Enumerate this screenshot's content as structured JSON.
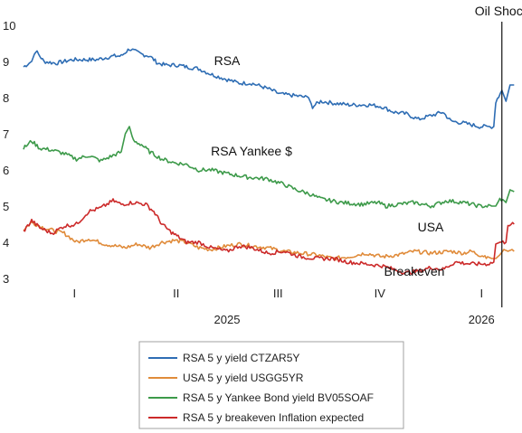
{
  "chart_data": {
    "type": "line",
    "ylim": [
      3,
      10
    ],
    "yticks": [
      3,
      4,
      5,
      6,
      7,
      8,
      9,
      10
    ],
    "quarter_labels": [
      {
        "label": "I",
        "t": 0.125
      },
      {
        "label": "II",
        "t": 0.375
      },
      {
        "label": "III",
        "t": 0.625
      },
      {
        "label": "IV",
        "t": 0.875
      },
      {
        "label": "I",
        "t": 1.125
      }
    ],
    "year_labels": [
      {
        "label": "2025",
        "t": 0.5
      },
      {
        "label": "2026",
        "t": 1.125
      }
    ],
    "xlim": [
      0.0,
      1.22
    ],
    "event": {
      "label": "Oil Shock",
      "t": 1.175
    },
    "annotations": [
      {
        "text": "RSA",
        "series": 0,
        "t": 0.5,
        "y": 8.9
      },
      {
        "text": "RSA Yankee $",
        "series": 2,
        "t": 0.56,
        "y": 6.4
      },
      {
        "text": "USA",
        "series": 1,
        "t": 1.0,
        "y": 4.3
      },
      {
        "text": "Breakeven",
        "series": 3,
        "t": 0.96,
        "y": 3.08
      }
    ],
    "series": [
      {
        "name": "RSA 5 y yield CTZAR5Y",
        "color": "#2e6db4",
        "points": [
          [
            0.0,
            8.85
          ],
          [
            0.02,
            9.0
          ],
          [
            0.03,
            9.3
          ],
          [
            0.05,
            9.0
          ],
          [
            0.08,
            8.95
          ],
          [
            0.12,
            9.05
          ],
          [
            0.18,
            9.05
          ],
          [
            0.22,
            9.15
          ],
          [
            0.24,
            9.15
          ],
          [
            0.26,
            9.35
          ],
          [
            0.29,
            9.2
          ],
          [
            0.31,
            9.15
          ],
          [
            0.33,
            8.95
          ],
          [
            0.35,
            8.9
          ],
          [
            0.38,
            8.9
          ],
          [
            0.4,
            8.85
          ],
          [
            0.43,
            8.8
          ],
          [
            0.46,
            8.65
          ],
          [
            0.5,
            8.5
          ],
          [
            0.53,
            8.4
          ],
          [
            0.56,
            8.4
          ],
          [
            0.6,
            8.25
          ],
          [
            0.63,
            8.1
          ],
          [
            0.67,
            8.05
          ],
          [
            0.7,
            8.0
          ],
          [
            0.71,
            7.75
          ],
          [
            0.73,
            7.9
          ],
          [
            0.76,
            7.85
          ],
          [
            0.8,
            7.8
          ],
          [
            0.85,
            7.8
          ],
          [
            0.88,
            7.75
          ],
          [
            0.91,
            7.6
          ],
          [
            0.94,
            7.55
          ],
          [
            0.97,
            7.4
          ],
          [
            1.0,
            7.5
          ],
          [
            1.03,
            7.6
          ],
          [
            1.05,
            7.35
          ],
          [
            1.08,
            7.3
          ],
          [
            1.12,
            7.2
          ],
          [
            1.145,
            7.2
          ],
          [
            1.15,
            7.15
          ],
          [
            1.155,
            7.2
          ],
          [
            1.16,
            7.9
          ],
          [
            1.175,
            8.2
          ],
          [
            1.185,
            7.9
          ],
          [
            1.195,
            8.35
          ],
          [
            1.205,
            8.35
          ]
        ]
      },
      {
        "name": "USA 5 y yield USGG5YR",
        "color": "#e08b3a",
        "points": [
          [
            0.0,
            4.35
          ],
          [
            0.02,
            4.55
          ],
          [
            0.05,
            4.4
          ],
          [
            0.08,
            4.3
          ],
          [
            0.1,
            4.25
          ],
          [
            0.13,
            4.0
          ],
          [
            0.16,
            4.1
          ],
          [
            0.2,
            3.95
          ],
          [
            0.25,
            3.85
          ],
          [
            0.28,
            3.95
          ],
          [
            0.31,
            3.85
          ],
          [
            0.34,
            4.0
          ],
          [
            0.37,
            4.05
          ],
          [
            0.4,
            4.0
          ],
          [
            0.43,
            3.85
          ],
          [
            0.46,
            3.8
          ],
          [
            0.5,
            3.9
          ],
          [
            0.53,
            3.95
          ],
          [
            0.56,
            3.9
          ],
          [
            0.6,
            3.85
          ],
          [
            0.64,
            3.75
          ],
          [
            0.68,
            3.7
          ],
          [
            0.72,
            3.65
          ],
          [
            0.76,
            3.55
          ],
          [
            0.8,
            3.6
          ],
          [
            0.84,
            3.7
          ],
          [
            0.88,
            3.6
          ],
          [
            0.92,
            3.65
          ],
          [
            0.96,
            3.75
          ],
          [
            1.0,
            3.7
          ],
          [
            1.05,
            3.75
          ],
          [
            1.08,
            3.7
          ],
          [
            1.1,
            3.75
          ],
          [
            1.12,
            3.65
          ],
          [
            1.14,
            3.6
          ],
          [
            1.15,
            3.55
          ],
          [
            1.16,
            3.55
          ],
          [
            1.17,
            3.65
          ],
          [
            1.18,
            3.8
          ],
          [
            1.19,
            3.75
          ],
          [
            1.2,
            3.8
          ],
          [
            1.205,
            3.75
          ]
        ]
      },
      {
        "name": "RSA 5 y Yankee Bond yield BV05SOAF",
        "color": "#3d9a4a",
        "points": [
          [
            0.0,
            6.6
          ],
          [
            0.02,
            6.8
          ],
          [
            0.04,
            6.6
          ],
          [
            0.07,
            6.55
          ],
          [
            0.1,
            6.45
          ],
          [
            0.13,
            6.3
          ],
          [
            0.16,
            6.4
          ],
          [
            0.19,
            6.25
          ],
          [
            0.22,
            6.4
          ],
          [
            0.24,
            6.5
          ],
          [
            0.25,
            7.0
          ],
          [
            0.26,
            7.2
          ],
          [
            0.27,
            6.8
          ],
          [
            0.29,
            6.7
          ],
          [
            0.31,
            6.5
          ],
          [
            0.34,
            6.3
          ],
          [
            0.37,
            6.2
          ],
          [
            0.4,
            6.15
          ],
          [
            0.43,
            6.0
          ],
          [
            0.46,
            6.0
          ],
          [
            0.5,
            5.9
          ],
          [
            0.55,
            5.8
          ],
          [
            0.6,
            5.75
          ],
          [
            0.64,
            5.6
          ],
          [
            0.67,
            5.45
          ],
          [
            0.7,
            5.35
          ],
          [
            0.73,
            5.2
          ],
          [
            0.78,
            5.1
          ],
          [
            0.83,
            5.05
          ],
          [
            0.87,
            5.1
          ],
          [
            0.89,
            5.0
          ],
          [
            0.92,
            5.05
          ],
          [
            0.96,
            5.1
          ],
          [
            1.0,
            5.0
          ],
          [
            1.04,
            5.15
          ],
          [
            1.08,
            5.1
          ],
          [
            1.12,
            5.0
          ],
          [
            1.15,
            5.0
          ],
          [
            1.16,
            5.0
          ],
          [
            1.17,
            5.2
          ],
          [
            1.185,
            5.1
          ],
          [
            1.195,
            5.45
          ],
          [
            1.205,
            5.4
          ]
        ]
      },
      {
        "name": "RSA 5 y breakeven Inflation expected",
        "color": "#cc2a2a",
        "points": [
          [
            0.0,
            4.3
          ],
          [
            0.02,
            4.6
          ],
          [
            0.04,
            4.4
          ],
          [
            0.07,
            4.25
          ],
          [
            0.1,
            4.45
          ],
          [
            0.13,
            4.5
          ],
          [
            0.16,
            4.85
          ],
          [
            0.19,
            4.95
          ],
          [
            0.22,
            5.15
          ],
          [
            0.24,
            5.05
          ],
          [
            0.27,
            5.1
          ],
          [
            0.3,
            5.05
          ],
          [
            0.32,
            4.85
          ],
          [
            0.34,
            4.5
          ],
          [
            0.36,
            4.3
          ],
          [
            0.38,
            4.15
          ],
          [
            0.4,
            4.0
          ],
          [
            0.43,
            4.0
          ],
          [
            0.46,
            3.85
          ],
          [
            0.5,
            3.75
          ],
          [
            0.53,
            3.9
          ],
          [
            0.56,
            3.85
          ],
          [
            0.6,
            3.7
          ],
          [
            0.64,
            3.75
          ],
          [
            0.68,
            3.6
          ],
          [
            0.72,
            3.55
          ],
          [
            0.76,
            3.55
          ],
          [
            0.8,
            3.45
          ],
          [
            0.84,
            3.4
          ],
          [
            0.88,
            3.35
          ],
          [
            0.91,
            3.25
          ],
          [
            0.94,
            3.15
          ],
          [
            0.97,
            3.2
          ],
          [
            1.0,
            3.3
          ],
          [
            1.03,
            3.25
          ],
          [
            1.06,
            3.45
          ],
          [
            1.1,
            3.4
          ],
          [
            1.14,
            3.4
          ],
          [
            1.155,
            3.45
          ],
          [
            1.16,
            3.95
          ],
          [
            1.17,
            4.0
          ],
          [
            1.185,
            4.0
          ],
          [
            1.19,
            4.5
          ],
          [
            1.205,
            4.5
          ]
        ]
      }
    ]
  }
}
